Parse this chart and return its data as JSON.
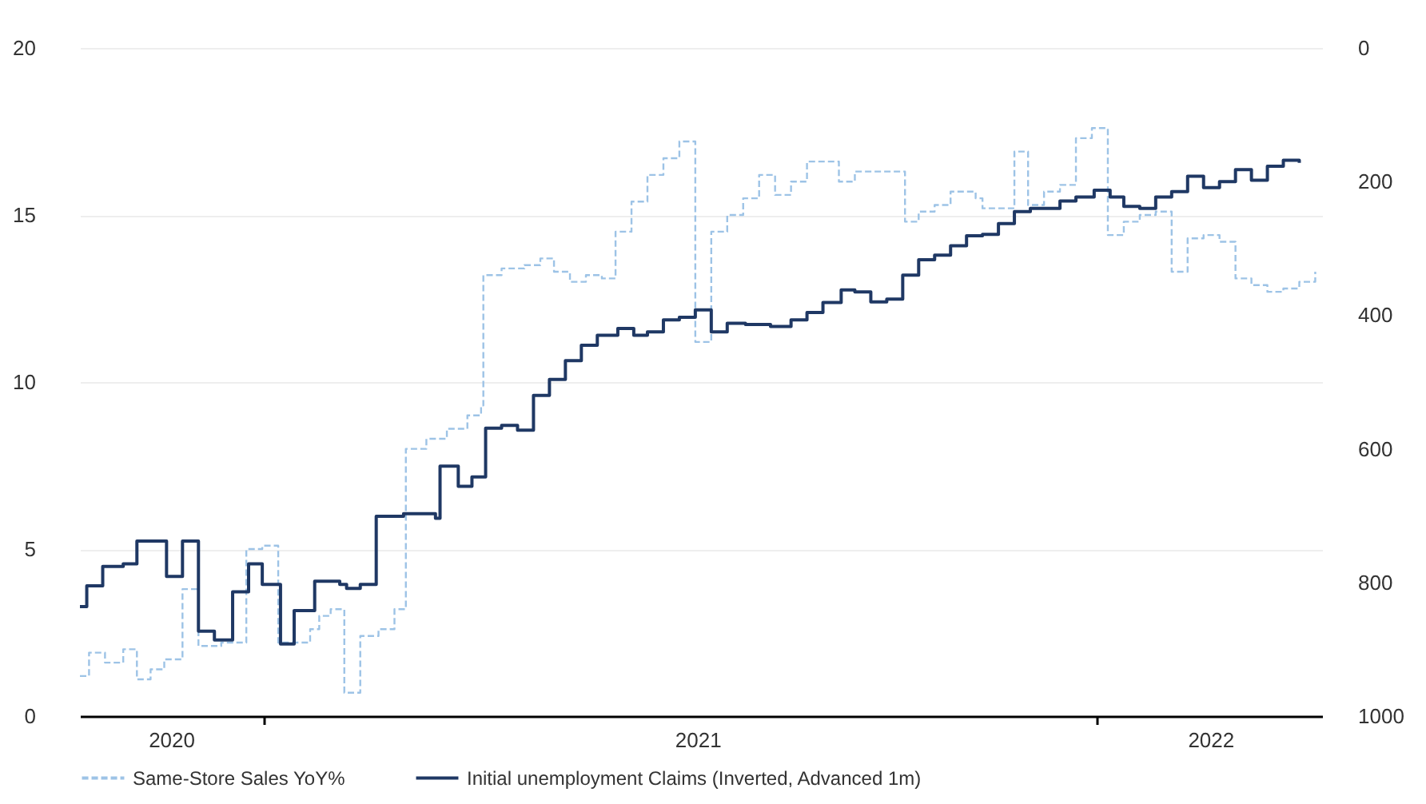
{
  "chart_data": {
    "type": "step",
    "legend": "bottom",
    "grid": "y",
    "xlim": [
      "2020-10-12",
      "2022-04-10"
    ],
    "xticks": [
      {
        "value": "2020-11-21",
        "label": "2020"
      },
      {
        "value": "2021-01-01",
        "label": null
      },
      {
        "value": "2021-07-10",
        "label": "2021"
      },
      {
        "value": "2022-01-01",
        "label": null
      },
      {
        "value": "2022-02-20",
        "label": "2022"
      }
    ],
    "ylim": [
      0,
      20
    ],
    "yticks": [
      0,
      5,
      10,
      15,
      20
    ],
    "y2lim": [
      1000,
      0
    ],
    "y2ticks": [
      0,
      200,
      400,
      600,
      800,
      1000
    ],
    "series": [
      {
        "name": "Same-Store Sales YoY%",
        "color": "#9dc3e6",
        "line_style": "dashed",
        "x": [
          "2020-10-12",
          "2020-10-16",
          "2020-10-23",
          "2020-10-31",
          "2020-11-06",
          "2020-11-12",
          "2020-11-18",
          "2020-11-26",
          "2020-12-03",
          "2020-12-13",
          "2020-12-24",
          "2020-12-31",
          "2021-01-07",
          "2021-01-21",
          "2021-01-25",
          "2021-01-30",
          "2021-02-05",
          "2021-02-12",
          "2021-02-20",
          "2021-02-27",
          "2021-03-04",
          "2021-03-13",
          "2021-03-22",
          "2021-03-31",
          "2021-04-06",
          "2021-04-07",
          "2021-04-15",
          "2021-04-25",
          "2021-05-02",
          "2021-05-08",
          "2021-05-15",
          "2021-05-22",
          "2021-05-29",
          "2021-06-04",
          "2021-06-11",
          "2021-06-18",
          "2021-06-25",
          "2021-07-02",
          "2021-07-09",
          "2021-07-16",
          "2021-07-23",
          "2021-07-30",
          "2021-08-06",
          "2021-08-13",
          "2021-08-20",
          "2021-08-27",
          "2021-09-10",
          "2021-09-17",
          "2021-10-09",
          "2021-10-15",
          "2021-10-22",
          "2021-10-29",
          "2021-11-09",
          "2021-11-12",
          "2021-11-19",
          "2021-11-26",
          "2021-12-02",
          "2021-12-09",
          "2021-12-16",
          "2021-12-23",
          "2021-12-30",
          "2022-01-06",
          "2022-01-13",
          "2022-01-20",
          "2022-01-27",
          "2022-02-03",
          "2022-02-10",
          "2022-02-17",
          "2022-02-24",
          "2022-03-03",
          "2022-03-10",
          "2022-03-17",
          "2022-03-24",
          "2022-03-31",
          "2022-04-07"
        ],
        "values": [
          1.2,
          1.9,
          1.6,
          2.0,
          1.1,
          1.4,
          1.7,
          3.8,
          2.1,
          2.2,
          5.0,
          5.1,
          2.2,
          2.6,
          3.0,
          3.2,
          0.7,
          2.4,
          2.6,
          3.2,
          8.0,
          8.3,
          8.6,
          9.0,
          9.3,
          13.2,
          13.4,
          13.5,
          13.7,
          13.3,
          13.0,
          13.2,
          13.1,
          14.5,
          15.4,
          16.2,
          16.7,
          17.2,
          11.2,
          14.5,
          15.0,
          15.5,
          16.2,
          15.6,
          16.0,
          16.6,
          16.0,
          16.3,
          14.8,
          15.1,
          15.3,
          15.7,
          15.5,
          15.2,
          15.2,
          16.9,
          15.3,
          15.7,
          15.9,
          17.3,
          17.6,
          14.4,
          14.8,
          15.0,
          15.1,
          13.3,
          14.3,
          14.4,
          14.2,
          13.1,
          12.9,
          12.7,
          12.8,
          13.0,
          13.3
        ]
      },
      {
        "name": "Initial unemployment Claims (Inverted, Advanced 1m)",
        "color": "#1f3864",
        "axis": "y2",
        "x": [
          "2020-10-12",
          "2020-10-15",
          "2020-10-22",
          "2020-10-31",
          "2020-11-06",
          "2020-11-19",
          "2020-11-26",
          "2020-12-03",
          "2020-12-10",
          "2020-12-18",
          "2020-12-25",
          "2020-12-31",
          "2021-01-08",
          "2021-01-14",
          "2021-01-23",
          "2021-02-03",
          "2021-02-06",
          "2021-02-12",
          "2021-02-19",
          "2021-03-03",
          "2021-03-17",
          "2021-03-19",
          "2021-03-27",
          "2021-04-02",
          "2021-04-08",
          "2021-04-15",
          "2021-04-22",
          "2021-04-29",
          "2021-05-06",
          "2021-05-13",
          "2021-05-20",
          "2021-05-27",
          "2021-06-05",
          "2021-06-12",
          "2021-06-18",
          "2021-06-25",
          "2021-07-02",
          "2021-07-09",
          "2021-07-16",
          "2021-07-23",
          "2021-07-31",
          "2021-08-11",
          "2021-08-20",
          "2021-08-27",
          "2021-09-03",
          "2021-09-11",
          "2021-09-17",
          "2021-09-24",
          "2021-10-01",
          "2021-10-08",
          "2021-10-15",
          "2021-10-22",
          "2021-10-29",
          "2021-11-05",
          "2021-11-12",
          "2021-11-19",
          "2021-11-26",
          "2021-12-03",
          "2021-12-16",
          "2021-12-23",
          "2021-12-31",
          "2022-01-07",
          "2022-01-13",
          "2022-01-20",
          "2022-01-27",
          "2022-02-03",
          "2022-02-10",
          "2022-02-17",
          "2022-02-24",
          "2022-03-03",
          "2022-03-10",
          "2022-03-17",
          "2022-03-24",
          "2022-03-31"
        ],
        "values": [
          836,
          805,
          776,
          772,
          738,
          791,
          738,
          873,
          886,
          814,
          772,
          803,
          892,
          842,
          798,
          803,
          809,
          803,
          701,
          697,
          704,
          626,
          656,
          642,
          569,
          565,
          572,
          520,
          496,
          468,
          445,
          430,
          420,
          430,
          425,
          407,
          403,
          392,
          425,
          412,
          414,
          417,
          407,
          396,
          381,
          362,
          365,
          380,
          376,
          340,
          317,
          310,
          296,
          281,
          279,
          263,
          245,
          240,
          229,
          223,
          213,
          223,
          237,
          240,
          223,
          215,
          192,
          209,
          200,
          182,
          198,
          177,
          168,
          172
        ]
      }
    ]
  }
}
